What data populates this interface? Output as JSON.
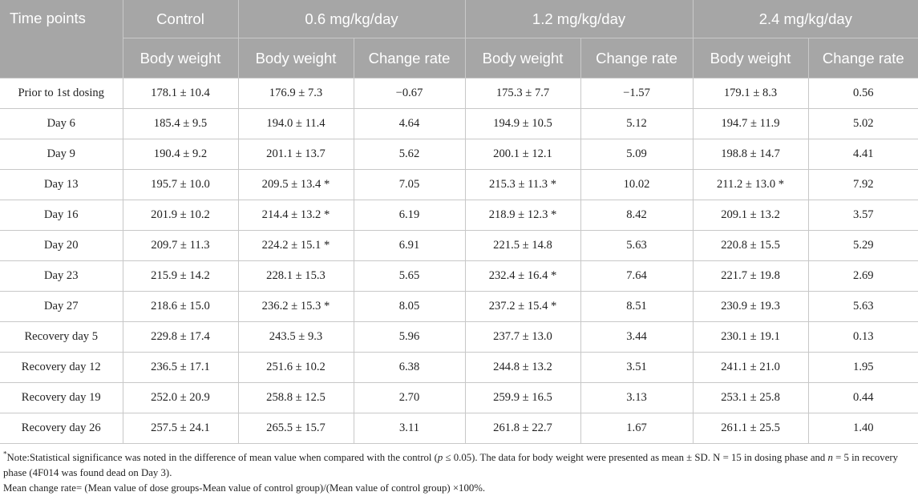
{
  "header": {
    "time_points": "Time points",
    "control": "Control",
    "dose1": "0.6 mg/kg/day",
    "dose2": "1.2 mg/kg/day",
    "dose3": "2.4 mg/kg/day",
    "sub": [
      "Body weight",
      "Body weight",
      "Change rate",
      "Body weight",
      "Change rate",
      "Body weight",
      "Change rate"
    ]
  },
  "rows": [
    [
      "Prior to 1st dosing",
      "178.1 ± 10.4",
      "176.9 ± 7.3",
      "−0.67",
      "175.3 ± 7.7",
      "−1.57",
      "179.1 ± 8.3",
      "0.56"
    ],
    [
      "Day 6",
      "185.4 ± 9.5",
      "194.0 ± 11.4",
      "4.64",
      "194.9 ± 10.5",
      "5.12",
      "194.7 ± 11.9",
      "5.02"
    ],
    [
      "Day 9",
      "190.4 ± 9.2",
      "201.1 ± 13.7",
      "5.62",
      "200.1 ± 12.1",
      "5.09",
      "198.8 ± 14.7",
      "4.41"
    ],
    [
      "Day 13",
      "195.7 ± 10.0",
      "209.5 ± 13.4 *",
      "7.05",
      "215.3 ± 11.3 *",
      "10.02",
      "211.2 ± 13.0 *",
      "7.92"
    ],
    [
      "Day 16",
      "201.9 ± 10.2",
      "214.4 ± 13.2 *",
      "6.19",
      "218.9 ± 12.3 *",
      "8.42",
      "209.1 ± 13.2",
      "3.57"
    ],
    [
      "Day 20",
      "209.7 ± 11.3",
      "224.2 ± 15.1 *",
      "6.91",
      "221.5 ± 14.8",
      "5.63",
      "220.8 ± 15.5",
      "5.29"
    ],
    [
      "Day 23",
      "215.9 ± 14.2",
      "228.1 ± 15.3",
      "5.65",
      "232.4 ± 16.4 *",
      "7.64",
      "221.7 ± 19.8",
      "2.69"
    ],
    [
      "Day 27",
      "218.6 ± 15.0",
      "236.2 ± 15.3 *",
      "8.05",
      "237.2 ± 15.4 *",
      "8.51",
      "230.9 ± 19.3",
      "5.63"
    ],
    [
      "Recovery day 5",
      "229.8 ± 17.4",
      "243.5 ± 9.3",
      "5.96",
      "237.7 ± 13.0",
      "3.44",
      "230.1 ± 19.1",
      "0.13"
    ],
    [
      "Recovery day 12",
      "236.5 ± 17.1",
      "251.6 ± 10.2",
      "6.38",
      "244.8 ± 13.2",
      "3.51",
      "241.1 ± 21.0",
      "1.95"
    ],
    [
      "Recovery day 19",
      "252.0 ± 20.9",
      "258.8 ± 12.5",
      "2.70",
      "259.9 ± 16.5",
      "3.13",
      "253.1 ± 25.8",
      "0.44"
    ],
    [
      "Recovery day 26",
      "257.5 ± 24.1",
      "265.5 ± 15.7",
      "3.11",
      "261.8 ± 22.7",
      "1.67",
      "261.1 ± 25.5",
      "1.40"
    ]
  ],
  "notes": {
    "star": "*",
    "note1_a": "Note:Statistical significance was noted in the difference of mean value when compared with the control (",
    "note1_p": "p",
    "note1_b": " ≤ 0.05). The data for body weight were presented as mean ± SD. N = 15 in dosing phase and ",
    "note1_n": "n",
    "note1_c": " = 5 in recovery phase (4F014 was found dead on Day 3).",
    "note2": "Mean change rate= (Mean value of dose groups-Mean value of control group)/(Mean value of control group) ×100%."
  }
}
